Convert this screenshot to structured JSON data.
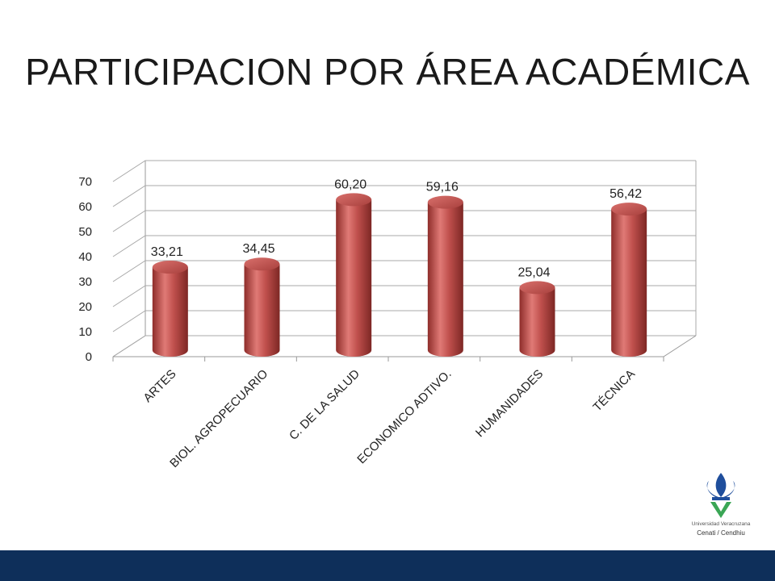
{
  "title": "PARTICIPACION POR ÁREA ACADÉMICA",
  "chart_data": {
    "type": "bar",
    "style": "3d-cylinder",
    "categories": [
      "ARTES",
      "BIOL. AGROPECUARIO",
      "C. DE LA SALUD",
      "ECONOMICO ADTIVO.",
      "HUMANIDADES",
      "TÉCNICA"
    ],
    "values": [
      33.21,
      34.45,
      60.2,
      59.16,
      25.04,
      56.42
    ],
    "data_labels": [
      "33,21",
      "34,45",
      "60,20",
      "59,16",
      "25,04",
      "56,42"
    ],
    "yticks": [
      "0",
      "10",
      "20",
      "30",
      "40",
      "50",
      "60",
      "70"
    ],
    "ylim": [
      0,
      70
    ],
    "grid": true,
    "legend": "none",
    "bar_color": "#c0504d"
  },
  "footer": {
    "logo_name": "Universidad Veracruzana",
    "logo_sub": "Cenati / Cendhiu",
    "bar_color": "#0e2f5a"
  }
}
